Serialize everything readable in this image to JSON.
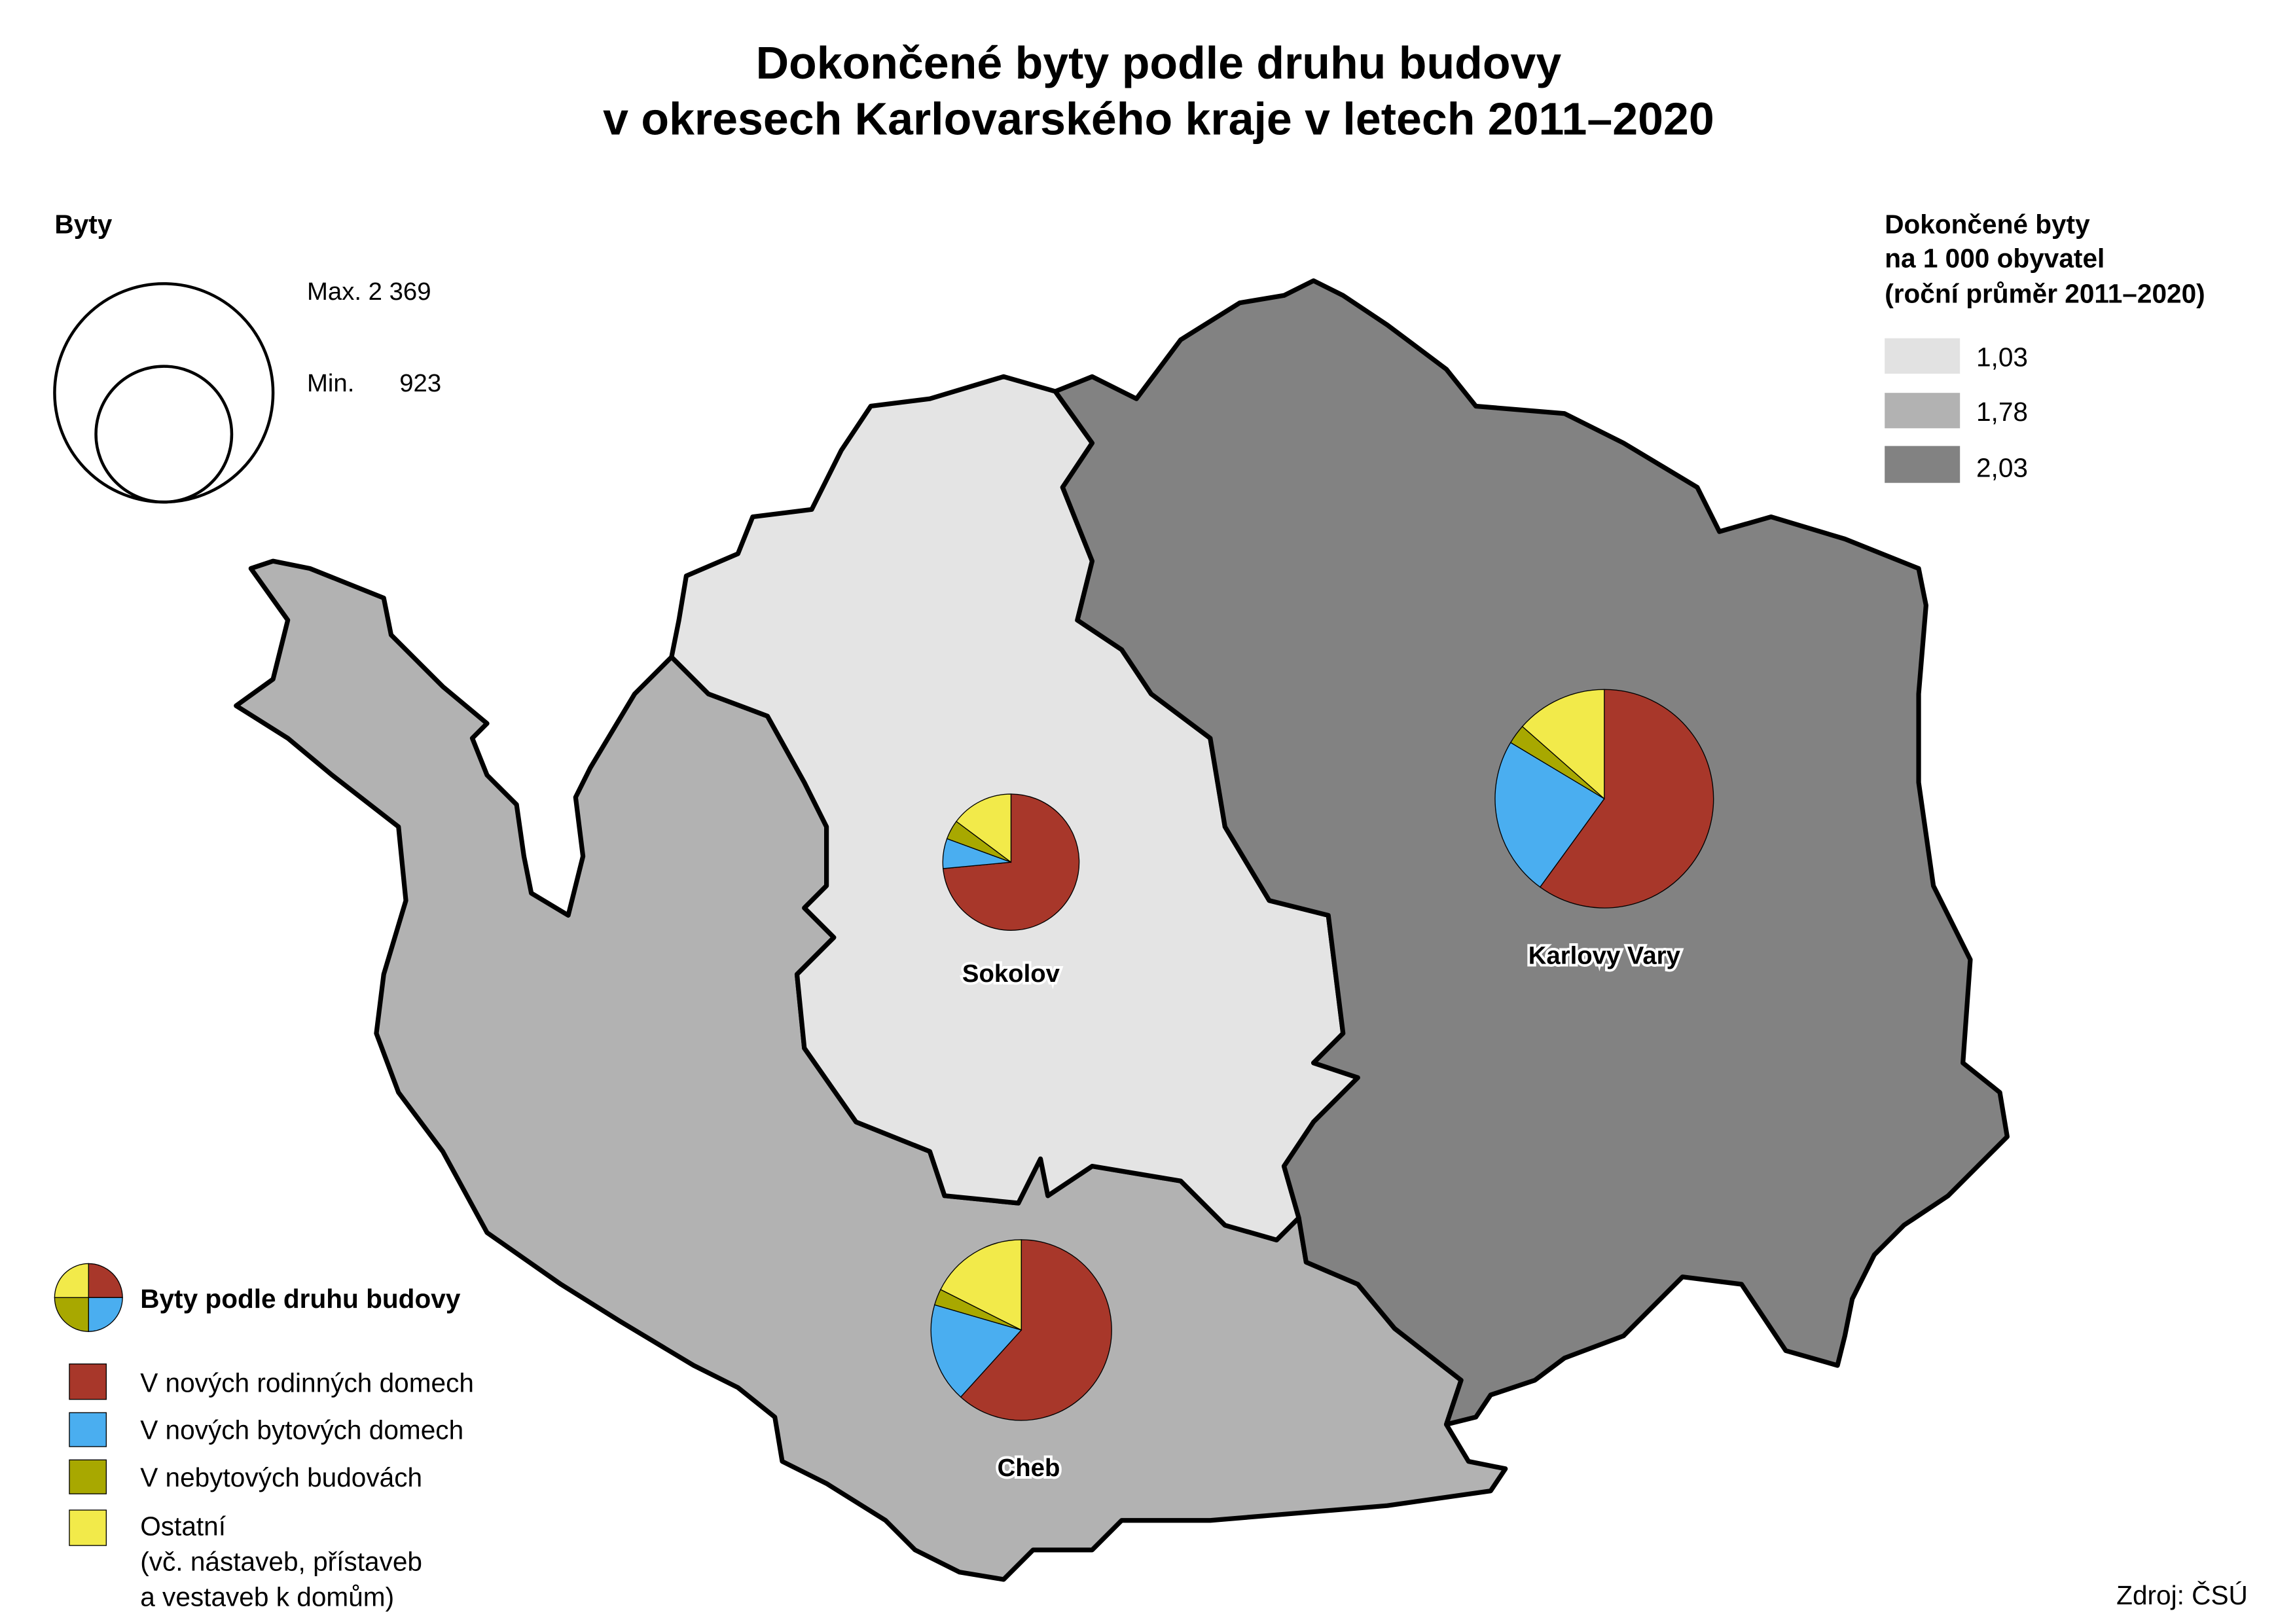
{
  "title": {
    "line1": "Dokončené byty podle druhu budovy",
    "line2": "v okresech Karlovarského kraje v letech 2011–2020"
  },
  "size_legend": {
    "title": "Byty",
    "max_label": "Max. 2 369",
    "min_label": "Min.",
    "min_value": "923"
  },
  "choropleth_legend": {
    "title_line1": "Dokončené byty",
    "title_line2": "na 1 000 obyvatel",
    "title_line3": "(roční průměr 2011–2020)",
    "classes": [
      {
        "label": "1,03",
        "color": "#E2E2E2"
      },
      {
        "label": "1,78",
        "color": "#B2B2B2"
      },
      {
        "label": "2,03",
        "color": "#828282"
      }
    ]
  },
  "category_legend": {
    "title": "Byty podle druhu budovy",
    "items": [
      {
        "label": "V nových rodinných domech",
        "color": "#A8372A"
      },
      {
        "label": "V nových bytových domech",
        "color": "#4AAEF0"
      },
      {
        "label": "V nebytových budovách",
        "color": "#A8A800"
      },
      {
        "label": "Ostatní",
        "label_line2": "(vč. nástaveb, přístaveb",
        "label_line3": "a vestaveb k domům)",
        "color": "#F2EA4A"
      }
    ]
  },
  "chart_data": {
    "type": "pie",
    "districts": [
      {
        "name": "Karlovy Vary",
        "per_1000": "2,03",
        "fill": "#828282",
        "total": 2369,
        "shares_pct": [
          60.0,
          23.6,
          2.9,
          13.5
        ]
      },
      {
        "name": "Sokolov",
        "per_1000": "1,03",
        "fill": "#E4E4E4",
        "total": 923,
        "shares_pct": [
          73.5,
          7.1,
          4.6,
          14.8
        ]
      },
      {
        "name": "Cheb",
        "per_1000": "1,78",
        "fill": "#B2B2B2",
        "total": 1620,
        "shares_pct": [
          61.7,
          17.8,
          2.9,
          17.6
        ]
      }
    ]
  },
  "source": "Zdroj: ČSÚ"
}
